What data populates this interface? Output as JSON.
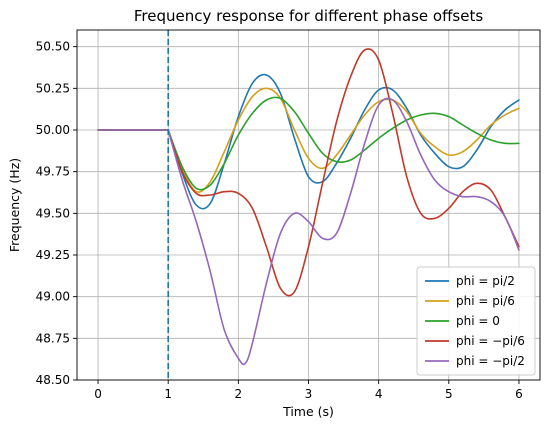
{
  "chart_data": {
    "type": "line",
    "title": "Frequency response for different phase offsets",
    "xlabel": "Time (s)",
    "ylabel": "Frequency (Hz)",
    "xlim": [
      -0.3,
      6.3
    ],
    "ylim": [
      48.5,
      50.6
    ],
    "xticks": [
      0,
      1,
      2,
      3,
      4,
      5,
      6
    ],
    "xtick_labels": [
      "0",
      "1",
      "2",
      "3",
      "4",
      "5",
      "6"
    ],
    "yticks": [
      48.5,
      48.75,
      49.0,
      49.25,
      49.5,
      49.75,
      50.0,
      50.25,
      50.5
    ],
    "ytick_labels": [
      "48.50",
      "48.75",
      "49.00",
      "49.25",
      "49.50",
      "49.75",
      "50.00",
      "50.25",
      "50.50"
    ],
    "grid": true,
    "legend_position": "bottom-right",
    "vertical_line": {
      "x": 1,
      "style": "dashed",
      "color": "#1f77b4"
    },
    "series": [
      {
        "name": "phi = pi/2",
        "color": "#1f77b4",
        "x": [
          0,
          1,
          1.2,
          1.4,
          1.6,
          1.8,
          2.0,
          2.2,
          2.4,
          2.6,
          2.8,
          3.0,
          3.2,
          3.4,
          3.6,
          3.8,
          4.0,
          4.2,
          4.4,
          4.6,
          4.8,
          5.0,
          5.2,
          5.4,
          5.6,
          5.8,
          6.0
        ],
        "y": [
          50.0,
          50.0,
          49.74,
          49.55,
          49.56,
          49.8,
          50.08,
          50.28,
          50.33,
          50.22,
          49.95,
          49.72,
          49.69,
          49.8,
          49.95,
          50.12,
          50.24,
          50.24,
          50.13,
          49.97,
          49.86,
          49.78,
          49.78,
          49.88,
          50.02,
          50.12,
          50.18
        ]
      },
      {
        "name": "phi = pi/6",
        "color": "#d4a017",
        "x": [
          0,
          1,
          1.2,
          1.4,
          1.6,
          1.8,
          2.0,
          2.2,
          2.4,
          2.6,
          2.8,
          3.0,
          3.2,
          3.4,
          3.6,
          3.8,
          4.0,
          4.2,
          4.4,
          4.6,
          4.8,
          5.0,
          5.2,
          5.4,
          5.6,
          5.8,
          6.0
        ],
        "y": [
          50.0,
          50.0,
          49.77,
          49.63,
          49.69,
          49.87,
          50.06,
          50.2,
          50.25,
          50.19,
          50.0,
          49.83,
          49.77,
          49.85,
          49.97,
          50.09,
          50.17,
          50.18,
          50.11,
          49.98,
          49.9,
          49.85,
          49.87,
          49.94,
          50.03,
          50.09,
          50.13
        ]
      },
      {
        "name": "phi = 0",
        "color": "#2ca02c",
        "x": [
          0,
          1,
          1.2,
          1.4,
          1.6,
          1.8,
          2.0,
          2.2,
          2.4,
          2.6,
          2.8,
          3.0,
          3.2,
          3.4,
          3.6,
          3.8,
          4.0,
          4.2,
          4.4,
          4.6,
          4.8,
          5.0,
          5.2,
          5.4,
          5.6,
          5.8,
          6.0
        ],
        "y": [
          50.0,
          50.0,
          49.78,
          49.65,
          49.67,
          49.8,
          49.97,
          50.1,
          50.18,
          50.19,
          50.11,
          49.98,
          49.86,
          49.81,
          49.82,
          49.88,
          49.95,
          50.01,
          50.06,
          50.09,
          50.1,
          50.08,
          50.03,
          49.98,
          49.94,
          49.92,
          49.92
        ]
      },
      {
        "name": "phi = −pi/6",
        "color": "#c0392b",
        "x": [
          0,
          1,
          1.2,
          1.4,
          1.6,
          1.8,
          2.0,
          2.2,
          2.4,
          2.6,
          2.8,
          3.0,
          3.2,
          3.4,
          3.6,
          3.8,
          4.0,
          4.2,
          4.4,
          4.6,
          4.8,
          5.0,
          5.2,
          5.4,
          5.6,
          5.8,
          6.0
        ],
        "y": [
          50.0,
          50.0,
          49.75,
          49.62,
          49.61,
          49.63,
          49.62,
          49.53,
          49.3,
          49.05,
          49.03,
          49.3,
          49.68,
          50.05,
          50.32,
          50.48,
          50.42,
          50.1,
          49.72,
          49.5,
          49.47,
          49.53,
          49.63,
          49.68,
          49.64,
          49.48,
          49.3
        ]
      },
      {
        "name": "phi = −pi/2",
        "color": "#9467bd",
        "x": [
          0,
          1,
          1.2,
          1.4,
          1.6,
          1.8,
          2.0,
          2.1,
          2.2,
          2.4,
          2.6,
          2.8,
          3.0,
          3.2,
          3.4,
          3.6,
          3.8,
          4.0,
          4.2,
          4.4,
          4.6,
          4.8,
          5.0,
          5.2,
          5.4,
          5.6,
          5.8,
          6.0
        ],
        "y": [
          50.0,
          50.0,
          49.7,
          49.45,
          49.15,
          48.8,
          48.63,
          48.6,
          48.72,
          49.08,
          49.38,
          49.5,
          49.45,
          49.35,
          49.38,
          49.62,
          49.92,
          50.15,
          50.18,
          50.05,
          49.85,
          49.7,
          49.63,
          49.6,
          49.6,
          49.57,
          49.48,
          49.28
        ]
      }
    ]
  }
}
